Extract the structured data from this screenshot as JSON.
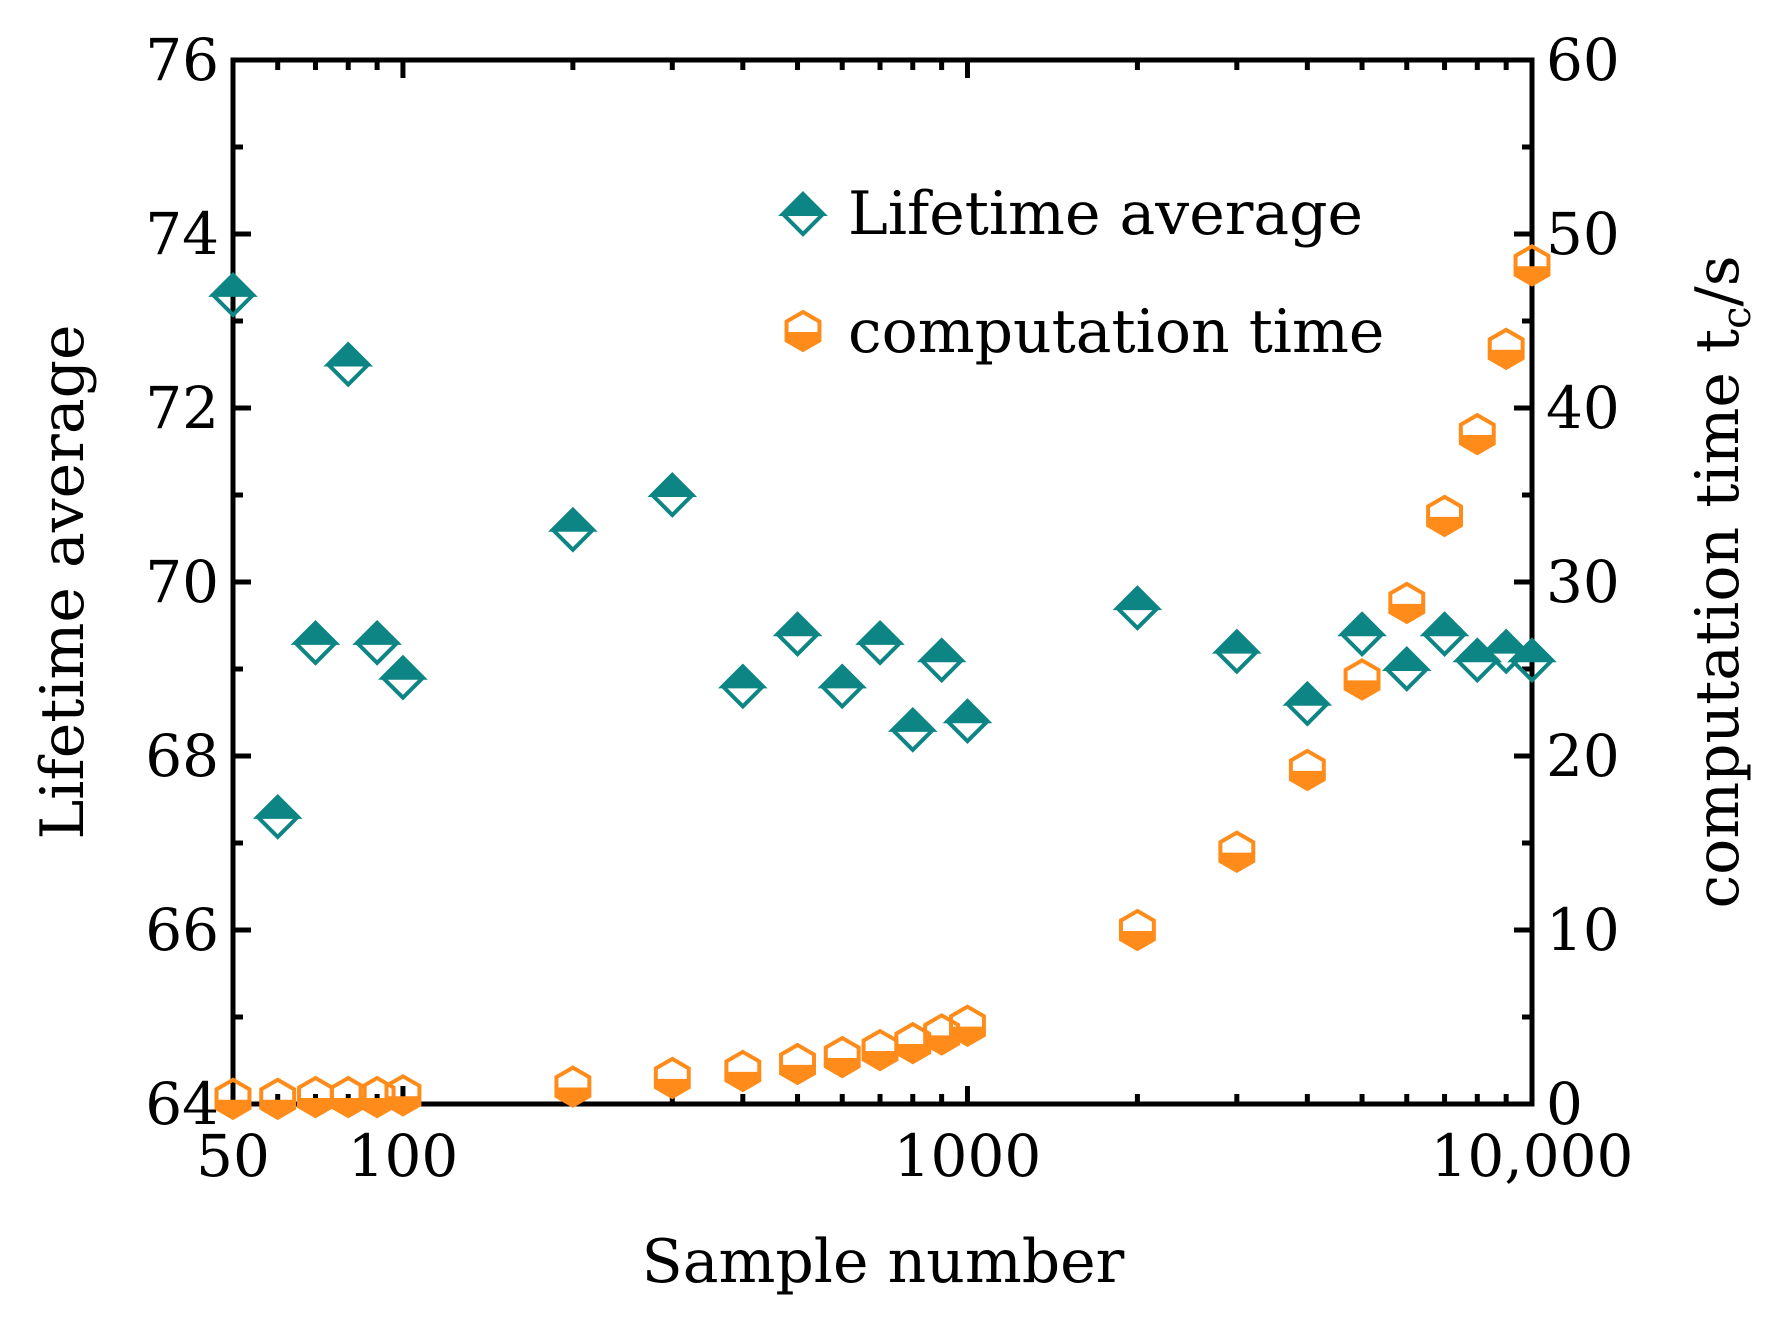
{
  "chart_data": {
    "type": "scatter",
    "xscale": "log",
    "xlabel": "Sample number",
    "ylabel": "Lifetime average",
    "y2label_main": "computation time t",
    "y2label_sub": "c",
    "y2label_tail": "/s",
    "xlim": [
      50,
      10000
    ],
    "ylim": [
      64,
      76
    ],
    "y2lim": [
      0,
      60
    ],
    "x_tick_values": [
      50,
      100,
      1000,
      10000
    ],
    "x_tick_labels": [
      "50",
      "100",
      "1000",
      "10,000"
    ],
    "y_ticks": [
      64,
      66,
      68,
      70,
      72,
      74,
      76
    ],
    "y2_ticks": [
      0,
      10,
      20,
      30,
      40,
      50,
      60
    ],
    "legend_position": "top-right",
    "colors": {
      "lifetime": "#0e8585",
      "computation": "#ff8c1a"
    },
    "series": [
      {
        "name": "Lifetime average",
        "axis": "left",
        "marker": "diamond",
        "x": [
          50,
          60,
          70,
          80,
          90,
          100,
          200,
          300,
          400,
          500,
          600,
          700,
          800,
          900,
          1000,
          2000,
          3000,
          4000,
          5000,
          6000,
          7000,
          8000,
          9000,
          10000
        ],
        "y": [
          73.3,
          67.3,
          69.3,
          72.5,
          69.3,
          68.9,
          70.6,
          71.0,
          68.8,
          69.4,
          68.8,
          69.3,
          68.3,
          69.1,
          68.4,
          69.7,
          69.2,
          68.6,
          69.4,
          69.0,
          69.4,
          69.1,
          69.2,
          69.1
        ]
      },
      {
        "name": "computation time",
        "axis": "right",
        "marker": "hexagon",
        "x": [
          50,
          60,
          70,
          80,
          90,
          100,
          200,
          300,
          400,
          500,
          600,
          700,
          800,
          900,
          1000,
          2000,
          3000,
          4000,
          5000,
          6000,
          7000,
          8000,
          9000,
          10000
        ],
        "y": [
          0.3,
          0.3,
          0.4,
          0.4,
          0.4,
          0.5,
          1.0,
          1.5,
          1.9,
          2.3,
          2.7,
          3.1,
          3.5,
          4.0,
          4.5,
          10.0,
          14.5,
          19.2,
          24.4,
          28.8,
          33.8,
          38.5,
          43.4,
          48.2
        ]
      }
    ]
  }
}
